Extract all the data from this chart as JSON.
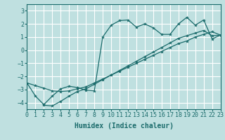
{
  "xlabel": "Humidex (Indice chaleur)",
  "xlim": [
    0,
    23
  ],
  "ylim": [
    -4.5,
    3.5
  ],
  "yticks": [
    -4,
    -3,
    -2,
    -1,
    0,
    1,
    2,
    3
  ],
  "xticks": [
    0,
    1,
    2,
    3,
    4,
    5,
    6,
    7,
    8,
    9,
    10,
    11,
    12,
    13,
    14,
    15,
    16,
    17,
    18,
    19,
    20,
    21,
    22,
    23
  ],
  "background_color": "#bfe0e0",
  "grid_color": "#ffffff",
  "line_color": "#1a6b6b",
  "lines": [
    {
      "x": [
        0,
        1,
        2,
        3,
        4,
        5,
        6,
        7,
        8,
        9,
        10,
        11,
        12,
        13,
        14,
        15,
        16,
        17,
        18,
        19,
        20,
        21,
        22,
        23
      ],
      "y": [
        -2.5,
        -2.7,
        -2.9,
        -3.1,
        -3.15,
        -3.1,
        -2.95,
        -2.8,
        -2.5,
        -2.2,
        -1.9,
        -1.6,
        -1.3,
        -1.0,
        -0.7,
        -0.4,
        -0.1,
        0.2,
        0.5,
        0.7,
        1.0,
        1.2,
        1.4,
        1.15
      ]
    },
    {
      "x": [
        0,
        1,
        2,
        3,
        4,
        5,
        6,
        7,
        8,
        9,
        10,
        11,
        12,
        13,
        14,
        15,
        16,
        17,
        18,
        19,
        20,
        21,
        22,
        23
      ],
      "y": [
        -2.5,
        -3.5,
        -4.15,
        -3.5,
        -2.95,
        -2.75,
        -2.85,
        -3.05,
        -3.1,
        1.0,
        1.9,
        2.25,
        2.3,
        1.75,
        2.0,
        1.7,
        1.2,
        1.2,
        2.0,
        2.5,
        1.9,
        2.3,
        0.85,
        1.15
      ]
    },
    {
      "x": [
        2,
        3,
        4,
        5,
        6,
        7,
        8,
        9,
        10,
        11,
        12,
        13,
        14,
        15,
        16,
        17,
        18,
        19,
        20,
        21,
        22,
        23
      ],
      "y": [
        -4.2,
        -4.25,
        -3.9,
        -3.5,
        -3.15,
        -2.95,
        -2.6,
        -2.25,
        -1.9,
        -1.55,
        -1.2,
        -0.85,
        -0.5,
        -0.15,
        0.2,
        0.55,
        0.9,
        1.1,
        1.3,
        1.5,
        1.1,
        1.15
      ]
    }
  ]
}
